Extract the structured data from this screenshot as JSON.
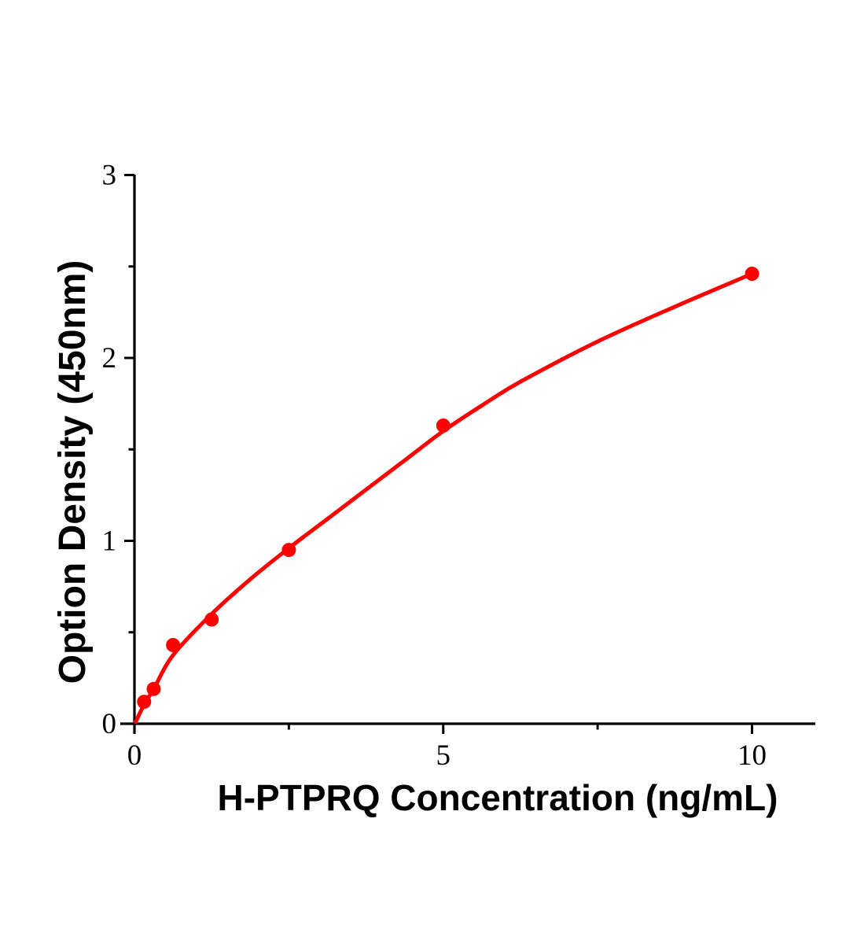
{
  "figure": {
    "background": "#ffffff",
    "axis_color": "#000000",
    "accent_color": "#ff0000"
  },
  "chart_data": {
    "type": "scatter",
    "title": "",
    "xlabel": "H-PTPRQ Concentration (ng/mL)",
    "ylabel": "Option Density (450nm)",
    "xlim": [
      0,
      11
    ],
    "ylim": [
      0,
      3
    ],
    "grid": false,
    "legend": false,
    "x_ticks": {
      "major": [
        0,
        5,
        10
      ],
      "minor": [
        2.5,
        7.5
      ],
      "labels": [
        "0",
        "5",
        "10"
      ]
    },
    "y_ticks": {
      "major": [
        0,
        1,
        2,
        3
      ],
      "minor": [
        0.5,
        1.5,
        2.5
      ],
      "labels": [
        "0",
        "1",
        "2",
        "3"
      ]
    },
    "series": [
      {
        "marker_color": "#ff0000",
        "line_color": "#ff0000",
        "points": [
          {
            "x": 0.156,
            "y": 0.12
          },
          {
            "x": 0.3125,
            "y": 0.19
          },
          {
            "x": 0.625,
            "y": 0.43
          },
          {
            "x": 1.25,
            "y": 0.57
          },
          {
            "x": 2.5,
            "y": 0.95
          },
          {
            "x": 5,
            "y": 1.63
          },
          {
            "x": 10,
            "y": 2.46
          }
        ],
        "fit_curve": [
          {
            "x": 0.02,
            "y": 0.01
          },
          {
            "x": 0.156,
            "y": 0.105
          },
          {
            "x": 0.3125,
            "y": 0.19
          },
          {
            "x": 0.625,
            "y": 0.375
          },
          {
            "x": 1.25,
            "y": 0.6
          },
          {
            "x": 1.875,
            "y": 0.79
          },
          {
            "x": 2.5,
            "y": 0.96
          },
          {
            "x": 3.125,
            "y": 1.12
          },
          {
            "x": 3.75,
            "y": 1.28
          },
          {
            "x": 4.375,
            "y": 1.44
          },
          {
            "x": 5,
            "y": 1.6
          },
          {
            "x": 5.625,
            "y": 1.74
          },
          {
            "x": 6.25,
            "y": 1.87
          },
          {
            "x": 7.5,
            "y": 2.09
          },
          {
            "x": 8.75,
            "y": 2.28
          },
          {
            "x": 10,
            "y": 2.46
          }
        ]
      }
    ]
  }
}
